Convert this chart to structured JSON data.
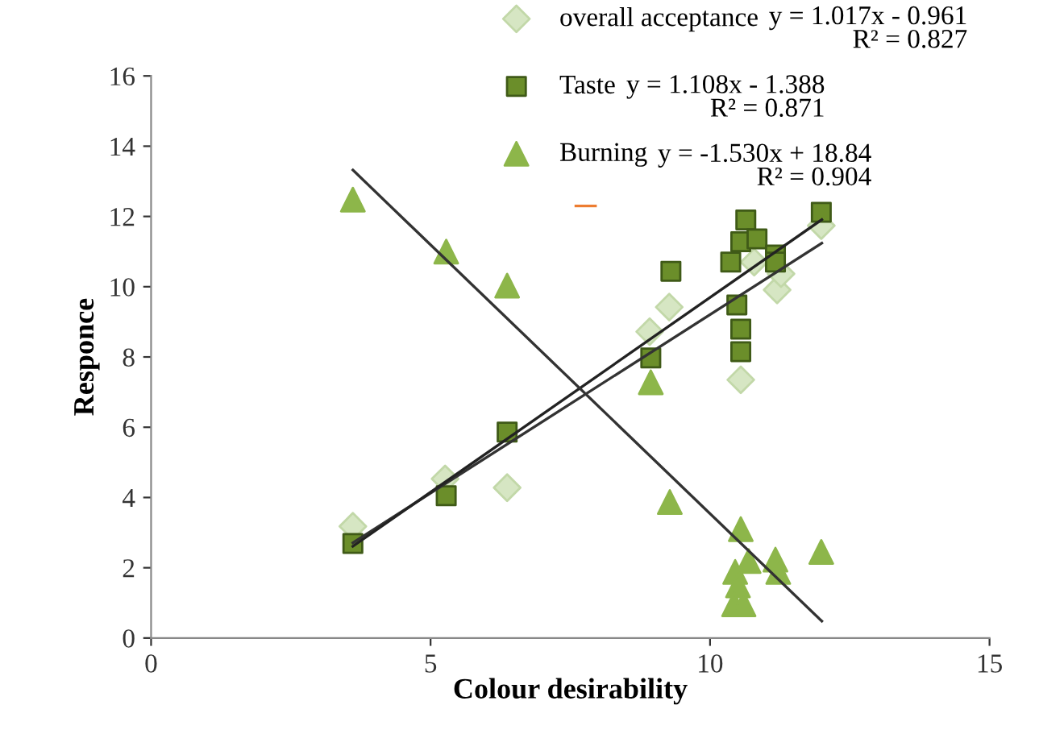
{
  "chart_data": {
    "type": "scatter",
    "xlabel": "Colour desirability",
    "ylabel": "Responce",
    "xlim": [
      0,
      15
    ],
    "ylim": [
      0,
      16
    ],
    "xticks": [
      0,
      5,
      10,
      15
    ],
    "yticks": [
      0,
      2,
      4,
      6,
      8,
      10,
      12,
      14,
      16
    ],
    "grid": false,
    "legend": "top right",
    "series": [
      {
        "name": "overall acceptance",
        "marker": "diamond",
        "color": "#d6e6c3",
        "x": [
          3.61,
          5.26,
          6.37,
          9.27,
          8.92,
          10.55,
          10.79,
          11.2,
          11.27,
          11.99
        ],
        "values": [
          3.18,
          4.53,
          4.28,
          9.42,
          8.72,
          7.35,
          10.7,
          9.91,
          10.37,
          11.74
        ]
      },
      {
        "name": "Taste",
        "marker": "square",
        "color": "#6b8e2a",
        "x": [
          3.61,
          5.28,
          6.37,
          8.94,
          9.3,
          10.37,
          10.55,
          10.64,
          10.84,
          11.17,
          11.17,
          10.48,
          10.55,
          10.55,
          11.99
        ],
        "values": [
          2.69,
          4.05,
          5.86,
          7.97,
          10.44,
          10.7,
          11.28,
          11.9,
          11.36,
          10.9,
          10.7,
          9.48,
          8.79,
          8.15,
          12.12
        ]
      },
      {
        "name": "Burning",
        "marker": "triangle",
        "color": "#8db64a",
        "x": [
          3.61,
          5.28,
          6.37,
          8.94,
          9.28,
          10.55,
          10.69,
          11.17,
          11.99,
          10.45,
          10.5,
          10.43,
          10.6,
          11.22
        ],
        "values": [
          12.48,
          11.0,
          10.03,
          7.28,
          3.87,
          3.1,
          2.19,
          2.23,
          2.45,
          1.88,
          1.5,
          0.96,
          0.96,
          1.88
        ]
      },
      {
        "type": "line",
        "marker": "none",
        "color": "#333333",
        "x": [
          3.61,
          12
        ],
        "values": [
          2.71,
          11.24
        ]
      },
      {
        "type": "line",
        "marker": "none",
        "color": "#222222",
        "x": [
          3.61,
          12
        ],
        "values": [
          2.61,
          11.91
        ]
      },
      {
        "type": "line",
        "marker": "none",
        "color": "#333333",
        "x": [
          3.61,
          12
        ],
        "values": [
          13.32,
          0.48
        ]
      },
      {
        "type": "line",
        "marker": "none",
        "color": "#ed7d31",
        "x": [
          7.6,
          7.95
        ],
        "values": [
          12.3,
          12.3
        ]
      }
    ],
    "annotations": [
      "y = 1.017x - 0.961\nR² = 0.827",
      "y = 1.108x - 1.388\nR² = 0.871",
      "y = -1.530x + 18.84\nR² = 0.904"
    ]
  }
}
